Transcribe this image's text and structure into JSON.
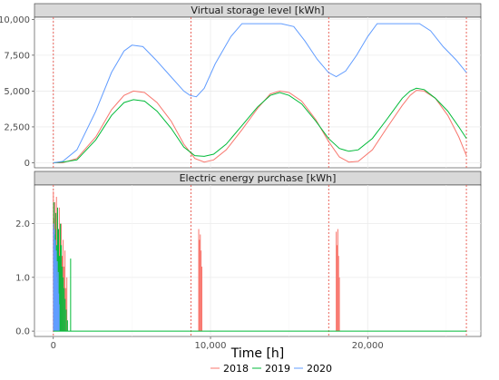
{
  "chart_data": [
    {
      "type": "line",
      "title": "Virtual storage level [kWh]",
      "xlim": [
        -1200,
        27200
      ],
      "ylim": [
        -350,
        10150
      ],
      "xticks": [
        0,
        10000,
        20000
      ],
      "yticks": [
        0,
        2500,
        5000,
        7500,
        10000
      ],
      "ytick_labels": [
        "0",
        "2,500",
        "5,000",
        "7,500",
        "10,000"
      ],
      "grid": true,
      "vlines": [
        0,
        8760,
        17520,
        26280
      ],
      "series": [
        {
          "name": "2018",
          "color": "#F8766D",
          "points": [
            [
              0,
              0
            ],
            [
              600,
              0
            ],
            [
              1500,
              300
            ],
            [
              2700,
              1800
            ],
            [
              3700,
              3700
            ],
            [
              4500,
              4700
            ],
            [
              5100,
              5000
            ],
            [
              5800,
              4900
            ],
            [
              6600,
              4200
            ],
            [
              7500,
              2900
            ],
            [
              8300,
              1300
            ],
            [
              9000,
              300
            ],
            [
              9600,
              50
            ],
            [
              10200,
              200
            ],
            [
              11000,
              900
            ],
            [
              12000,
              2300
            ],
            [
              13000,
              3800
            ],
            [
              13800,
              4800
            ],
            [
              14400,
              5000
            ],
            [
              15000,
              4900
            ],
            [
              15800,
              4300
            ],
            [
              16700,
              3000
            ],
            [
              17500,
              1500
            ],
            [
              18200,
              400
            ],
            [
              18800,
              50
            ],
            [
              19400,
              100
            ],
            [
              20300,
              900
            ],
            [
              21200,
              2400
            ],
            [
              22200,
              4000
            ],
            [
              22700,
              4700
            ],
            [
              23100,
              5050
            ],
            [
              23600,
              5000
            ],
            [
              24300,
              4500
            ],
            [
              25100,
              3300
            ],
            [
              25800,
              1800
            ],
            [
              26280,
              500
            ]
          ]
        },
        {
          "name": "2019",
          "color": "#00BA38",
          "points": [
            [
              0,
              0
            ],
            [
              600,
              50
            ],
            [
              1500,
              200
            ],
            [
              2700,
              1600
            ],
            [
              3700,
              3300
            ],
            [
              4500,
              4200
            ],
            [
              5100,
              4400
            ],
            [
              5800,
              4300
            ],
            [
              6600,
              3600
            ],
            [
              7500,
              2400
            ],
            [
              8300,
              1100
            ],
            [
              9000,
              500
            ],
            [
              9600,
              450
            ],
            [
              10200,
              600
            ],
            [
              11000,
              1300
            ],
            [
              12000,
              2600
            ],
            [
              13000,
              3900
            ],
            [
              13800,
              4700
            ],
            [
              14400,
              4900
            ],
            [
              15000,
              4700
            ],
            [
              15800,
              4100
            ],
            [
              16700,
              2900
            ],
            [
              17500,
              1700
            ],
            [
              18200,
              1000
            ],
            [
              18800,
              800
            ],
            [
              19400,
              900
            ],
            [
              20300,
              1700
            ],
            [
              21200,
              3000
            ],
            [
              22200,
              4500
            ],
            [
              22700,
              5000
            ],
            [
              23100,
              5200
            ],
            [
              23600,
              5100
            ],
            [
              24300,
              4500
            ],
            [
              25100,
              3600
            ],
            [
              25800,
              2500
            ],
            [
              26280,
              1700
            ]
          ]
        },
        {
          "name": "2020",
          "color": "#619CFF",
          "points": [
            [
              0,
              0
            ],
            [
              600,
              100
            ],
            [
              1500,
              900
            ],
            [
              2700,
              3600
            ],
            [
              3700,
              6300
            ],
            [
              4500,
              7800
            ],
            [
              5000,
              8200
            ],
            [
              5700,
              8100
            ],
            [
              6500,
              7200
            ],
            [
              7400,
              6100
            ],
            [
              8300,
              5000
            ],
            [
              8700,
              4700
            ],
            [
              9100,
              4600
            ],
            [
              9600,
              5200
            ],
            [
              10300,
              6900
            ],
            [
              11300,
              8800
            ],
            [
              12000,
              9700
            ],
            [
              13000,
              9700
            ],
            [
              14500,
              9700
            ],
            [
              15300,
              9500
            ],
            [
              16000,
              8500
            ],
            [
              16800,
              7200
            ],
            [
              17500,
              6300
            ],
            [
              18000,
              6000
            ],
            [
              18600,
              6400
            ],
            [
              19300,
              7500
            ],
            [
              20000,
              8800
            ],
            [
              20600,
              9700
            ],
            [
              21500,
              9700
            ],
            [
              22500,
              9700
            ],
            [
              23300,
              9700
            ],
            [
              24000,
              9200
            ],
            [
              24800,
              8100
            ],
            [
              25600,
              7200
            ],
            [
              26280,
              6300
            ]
          ]
        }
      ]
    },
    {
      "type": "bar",
      "title": "Electric energy purchase [kWh]",
      "xlabel": "Time [h]",
      "xlim": [
        -1200,
        27200
      ],
      "ylim": [
        -0.1,
        2.72
      ],
      "xticks": [
        0,
        10000,
        20000
      ],
      "xtick_labels": [
        "0",
        "10,000",
        "20,000"
      ],
      "yticks": [
        0,
        1,
        2
      ],
      "ytick_labels": [
        "0.0",
        "1.0",
        "2.0"
      ],
      "grid": true,
      "vlines": [
        0,
        8760,
        17520,
        26280
      ],
      "series": [
        {
          "name": "2018",
          "color": "#F8766D",
          "spikes": [
            [
              0,
              2.6
            ],
            [
              50,
              2.1
            ],
            [
              100,
              2.4
            ],
            [
              150,
              1.9
            ],
            [
              200,
              2.5
            ],
            [
              260,
              2.2
            ],
            [
              320,
              1.8
            ],
            [
              380,
              2.3
            ],
            [
              440,
              1.6
            ],
            [
              500,
              2.0
            ],
            [
              560,
              1.4
            ],
            [
              620,
              1.7
            ],
            [
              680,
              1.2
            ],
            [
              740,
              1.5
            ],
            [
              800,
              0.8
            ],
            [
              860,
              1.0
            ],
            [
              9250,
              1.9
            ],
            [
              9300,
              1.7
            ],
            [
              9350,
              1.8
            ],
            [
              9400,
              1.5
            ],
            [
              9450,
              1.2
            ],
            [
              18000,
              1.85
            ],
            [
              18050,
              1.6
            ],
            [
              18100,
              1.9
            ],
            [
              18150,
              1.4
            ],
            [
              18200,
              1.0
            ]
          ]
        },
        {
          "name": "2019",
          "color": "#00BA38",
          "spikes": [
            [
              30,
              2.4
            ],
            [
              90,
              1.8
            ],
            [
              150,
              2.2
            ],
            [
              210,
              1.6
            ],
            [
              270,
              2.3
            ],
            [
              330,
              1.9
            ],
            [
              390,
              1.4
            ],
            [
              450,
              2.0
            ],
            [
              510,
              1.6
            ],
            [
              570,
              1.2
            ],
            [
              630,
              1.0
            ],
            [
              690,
              0.8
            ],
            [
              750,
              0.6
            ],
            [
              820,
              0.4
            ],
            [
              900,
              0.2
            ],
            [
              1100,
              1.35
            ]
          ]
        },
        {
          "name": "2020",
          "color": "#619CFF",
          "spikes": [
            [
              10,
              2.0
            ],
            [
              40,
              1.6
            ],
            [
              70,
              1.9
            ],
            [
              100,
              1.4
            ],
            [
              130,
              1.7
            ],
            [
              160,
              1.2
            ],
            [
              190,
              1.5
            ],
            [
              220,
              1.0
            ],
            [
              250,
              1.3
            ],
            [
              280,
              0.9
            ],
            [
              310,
              1.1
            ],
            [
              340,
              0.7
            ],
            [
              370,
              0.5
            ]
          ]
        }
      ]
    }
  ],
  "legend": {
    "position": "bottom",
    "items": [
      {
        "label": "2018",
        "color": "#F8766D"
      },
      {
        "label": "2019",
        "color": "#00BA38"
      },
      {
        "label": "2020",
        "color": "#619CFF"
      }
    ]
  }
}
